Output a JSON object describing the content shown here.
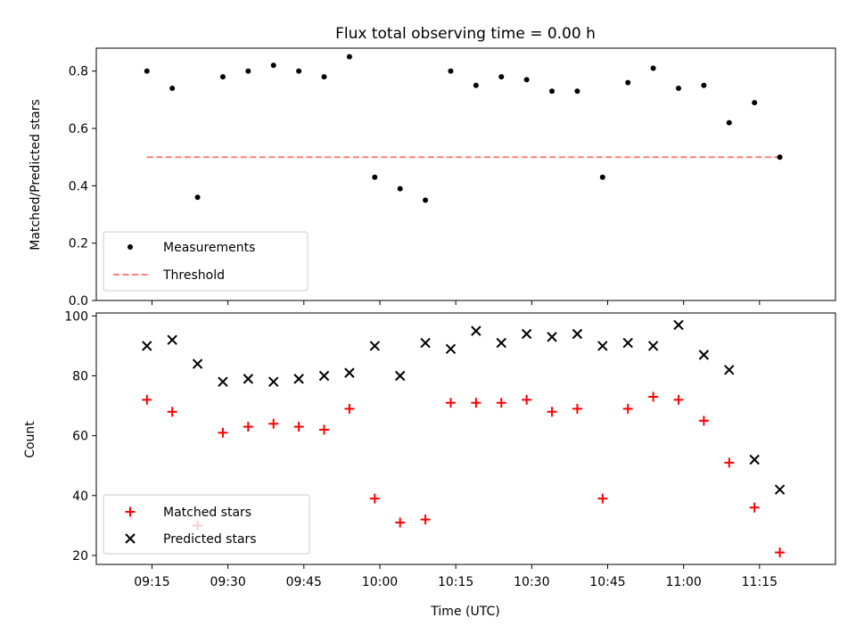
{
  "chart_data": [
    {
      "type": "scatter",
      "title": "Flux total observing time = 0.00 h",
      "ylabel": "Matched/Predicted stars",
      "xlabel": "",
      "ylim": [
        0.0,
        0.88
      ],
      "yticks": [
        "0.0",
        "0.2",
        "0.4",
        "0.6",
        "0.8"
      ],
      "legend_position": "lower-left",
      "series": [
        {
          "name": "Measurements",
          "marker": "dot",
          "color": "#000000",
          "x": [
            "09:14",
            "09:19",
            "09:24",
            "09:29",
            "09:34",
            "09:39",
            "09:44",
            "09:49",
            "09:54",
            "09:59",
            "10:04",
            "10:09",
            "10:14",
            "10:19",
            "10:24",
            "10:29",
            "10:34",
            "10:39",
            "10:44",
            "10:49",
            "10:54",
            "10:59",
            "11:04",
            "11:09",
            "11:14",
            "11:19"
          ],
          "y": [
            0.8,
            0.74,
            0.36,
            0.78,
            0.8,
            0.82,
            0.8,
            0.78,
            0.85,
            0.43,
            0.39,
            0.35,
            0.8,
            0.75,
            0.78,
            0.77,
            0.73,
            0.73,
            0.43,
            0.76,
            0.81,
            0.74,
            0.75,
            0.62,
            0.69,
            0.5
          ]
        },
        {
          "name": "Threshold",
          "marker": "dashed-line",
          "color": "#ff7f7f",
          "x": [
            "09:14",
            "11:19"
          ],
          "y": [
            0.5,
            0.5
          ]
        }
      ]
    },
    {
      "type": "scatter",
      "title": "",
      "ylabel": "Count",
      "xlabel": "Time (UTC)",
      "ylim": [
        17,
        101
      ],
      "yticks": [
        "20",
        "40",
        "60",
        "80",
        "100"
      ],
      "xticks": [
        "09:15",
        "09:30",
        "09:45",
        "10:00",
        "10:15",
        "10:30",
        "10:45",
        "11:00",
        "11:15"
      ],
      "legend_position": "lower-left",
      "series": [
        {
          "name": "Matched stars",
          "marker": "plus",
          "color": "#ff0000",
          "x": [
            "09:14",
            "09:19",
            "09:24",
            "09:29",
            "09:34",
            "09:39",
            "09:44",
            "09:49",
            "09:54",
            "09:59",
            "10:04",
            "10:09",
            "10:14",
            "10:19",
            "10:24",
            "10:29",
            "10:34",
            "10:39",
            "10:44",
            "10:49",
            "10:54",
            "10:59",
            "11:04",
            "11:09",
            "11:14",
            "11:19"
          ],
          "y": [
            72,
            68,
            30,
            61,
            63,
            64,
            63,
            62,
            69,
            39,
            31,
            32,
            71,
            71,
            71,
            72,
            68,
            69,
            39,
            69,
            73,
            72,
            65,
            51,
            36,
            21
          ]
        },
        {
          "name": "Predicted stars",
          "marker": "x",
          "color": "#000000",
          "x": [
            "09:14",
            "09:19",
            "09:24",
            "09:29",
            "09:34",
            "09:39",
            "09:44",
            "09:49",
            "09:54",
            "09:59",
            "10:04",
            "10:09",
            "10:14",
            "10:19",
            "10:24",
            "10:29",
            "10:34",
            "10:39",
            "10:44",
            "10:49",
            "10:54",
            "10:59",
            "11:04",
            "11:09",
            "11:14",
            "11:19"
          ],
          "y": [
            90,
            92,
            84,
            78,
            79,
            78,
            79,
            80,
            81,
            90,
            80,
            91,
            89,
            95,
            91,
            94,
            93,
            94,
            90,
            91,
            90,
            97,
            87,
            82,
            52,
            42
          ]
        }
      ]
    }
  ]
}
